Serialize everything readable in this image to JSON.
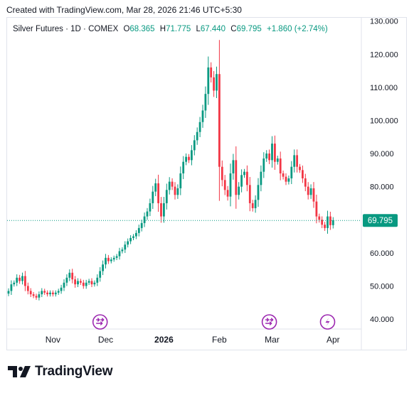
{
  "caption": "Created with TradingView.com, Mar 28, 2026 21:46 UTC+5:30",
  "legend": {
    "symbol": "Silver Futures · 1D · COMEX",
    "o_label": "O",
    "o": "68.365",
    "h_label": "H",
    "h": "71.775",
    "l_label": "L",
    "l": "67.440",
    "c_label": "C",
    "c": "69.795",
    "change": "+1.860 (+2.74%)"
  },
  "brand": "TradingView",
  "colors": {
    "up": "#089981",
    "down": "#f23645",
    "event": "#9c27b0",
    "price_line": "#089981"
  },
  "event_icons": [
    "dividend-arrow-icon",
    "dividend-arrow-icon",
    "lightning-icon"
  ],
  "chart_data": {
    "type": "candlestick",
    "title": "Silver Futures · 1D · COMEX",
    "ylim": [
      37,
      131
    ],
    "y_ticks": [
      "40.000",
      "50.000",
      "60.000",
      "70.000",
      "80.000",
      "90.000",
      "100.000",
      "110.000",
      "120.000",
      "130.000"
    ],
    "y_tick_values": [
      40,
      50,
      60,
      70,
      80,
      90,
      100,
      110,
      120,
      130
    ],
    "x_ticks": [
      {
        "label": "Nov",
        "bar": 16,
        "bold": false
      },
      {
        "label": "Dec",
        "bar": 35,
        "bold": false
      },
      {
        "label": "2026",
        "bar": 56,
        "bold": true
      },
      {
        "label": "Feb",
        "bar": 76,
        "bold": false
      },
      {
        "label": "Mar",
        "bar": 95,
        "bold": false
      },
      {
        "label": "Apr",
        "bar": 117,
        "bold": false
      }
    ],
    "last_price": "69.795",
    "last_price_value": 69.795,
    "events": [
      {
        "bar": 33,
        "type": "dividend"
      },
      {
        "bar": 94,
        "type": "dividend"
      },
      {
        "bar": 115,
        "type": "split"
      }
    ],
    "closes": [
      48.5,
      50.5,
      51.0,
      52.5,
      51.5,
      53.0,
      50.0,
      48.5,
      47.5,
      47.0,
      46.5,
      47.5,
      48.5,
      48.0,
      47.5,
      48.0,
      47.5,
      48.0,
      48.5,
      49.5,
      51.0,
      52.5,
      54.0,
      52.0,
      50.5,
      51.5,
      51.0,
      50.0,
      51.0,
      51.5,
      50.5,
      51.0,
      52.5,
      54.5,
      56.5,
      58.5,
      57.5,
      58.0,
      58.5,
      59.0,
      60.5,
      61.0,
      62.5,
      63.5,
      64.5,
      65.0,
      66.0,
      67.5,
      69.0,
      71.0,
      72.5,
      75.0,
      78.5,
      81.0,
      75.0,
      71.0,
      75.0,
      79.0,
      81.5,
      80.0,
      77.5,
      79.5,
      84.0,
      87.5,
      89.0,
      88.0,
      91.0,
      94.0,
      96.5,
      99.5,
      103.0,
      108.0,
      116.0,
      113.0,
      109.0,
      114.0,
      86.0,
      82.0,
      79.0,
      77.0,
      84.0,
      88.0,
      77.5,
      80.0,
      83.5,
      84.5,
      80.5,
      75.0,
      73.5,
      76.0,
      80.5,
      84.5,
      88.5,
      90.0,
      88.0,
      93.0,
      87.5,
      88.5,
      84.0,
      83.0,
      81.5,
      82.5,
      86.0,
      89.5,
      86.0,
      85.0,
      82.5,
      80.0,
      77.5,
      79.5,
      75.5,
      71.0,
      70.0,
      68.5,
      67.5,
      71.0,
      68.365,
      69.795
    ]
  }
}
